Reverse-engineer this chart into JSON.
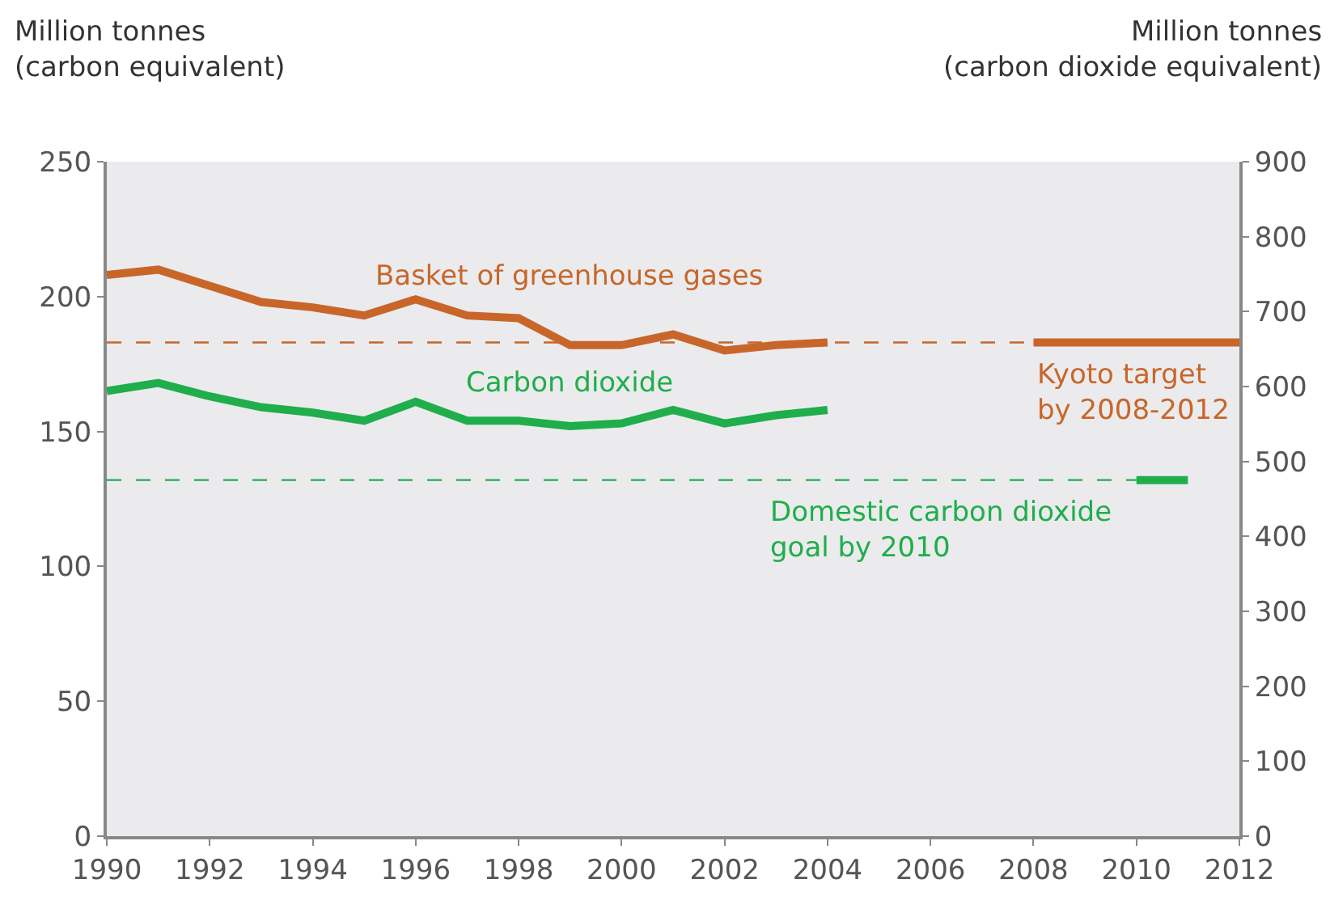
{
  "chart_data": {
    "type": "line",
    "ylabel": "Million tonnes\n(carbon equivalent)",
    "y2label": "Million tonnes\n(carbon dioxide equivalent)",
    "xlim": [
      1990,
      2012
    ],
    "xticks": [
      1990,
      1992,
      1994,
      1996,
      1998,
      2000,
      2002,
      2004,
      2006,
      2008,
      2010,
      2012
    ],
    "ylim": [
      0,
      250
    ],
    "yticks": [
      0,
      50,
      100,
      150,
      200,
      250
    ],
    "y2lim": [
      0,
      900
    ],
    "y2ticks": [
      0,
      100,
      200,
      300,
      400,
      500,
      600,
      700,
      800,
      900
    ],
    "grid": false,
    "legend": false,
    "marker": "none",
    "series": [
      {
        "name": "Basket of greenhouse gases",
        "color": "#c8662a",
        "x": [
          1990,
          1991,
          1992,
          1993,
          1994,
          1995,
          1996,
          1997,
          1998,
          1999,
          2000,
          2001,
          2002,
          2003,
          2004
        ],
        "values": [
          208,
          210,
          204,
          198,
          196,
          193,
          199,
          193,
          192,
          182,
          182,
          186,
          180,
          182,
          183
        ]
      },
      {
        "name": "Carbon dioxide",
        "color": "#1fae4b",
        "x": [
          1990,
          1991,
          1992,
          1993,
          1994,
          1995,
          1996,
          1997,
          1998,
          1999,
          2000,
          2001,
          2002,
          2003,
          2004
        ],
        "values": [
          165,
          168,
          163,
          159,
          157,
          154,
          161,
          154,
          154,
          152,
          153,
          158,
          153,
          156,
          158
        ]
      },
      {
        "color": "#c8662a",
        "line_style": "dashed",
        "x": [
          1990,
          2008
        ],
        "values": [
          183,
          183
        ]
      },
      {
        "name": "Kyoto target\nby 2008-2012",
        "color": "#c8662a",
        "x": [
          2008,
          2012
        ],
        "values": [
          183,
          183
        ]
      },
      {
        "color": "#1fae4b",
        "line_style": "dashed",
        "x": [
          1990,
          2010
        ],
        "values": [
          132,
          132
        ]
      },
      {
        "name": "Domestic carbon dioxide\ngoal by 2010",
        "color": "#1fae4b",
        "x": [
          2010,
          2011
        ],
        "values": [
          132,
          132
        ]
      }
    ]
  }
}
